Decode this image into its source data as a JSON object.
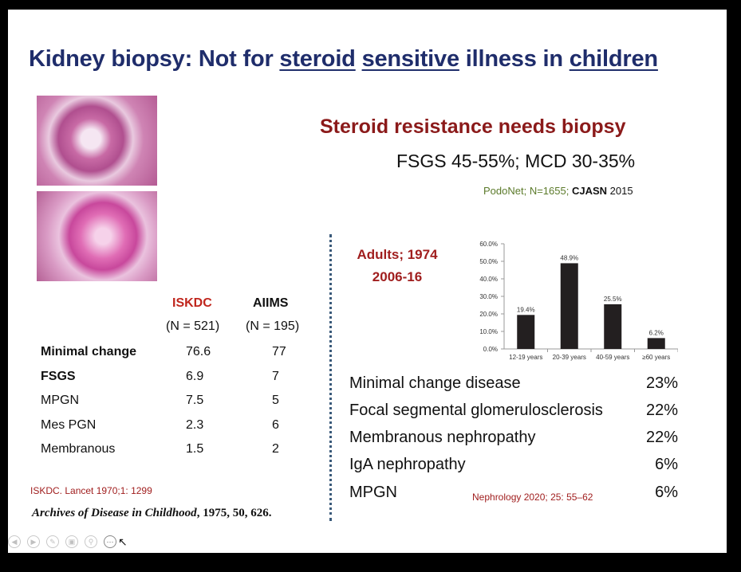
{
  "title": {
    "p1": "Kidney biopsy: Not for ",
    "w1": "steroid",
    "sp1": " ",
    "w2": "sensitive",
    "p2": " illness in ",
    "w3": "children"
  },
  "heading": "Steroid resistance needs biopsy",
  "subheading": "FSGS 45-55%; MCD 30-35%",
  "cite_podonet": {
    "a": "PodoNet; N=1655; ",
    "b": "CJASN",
    "c": " 2015"
  },
  "adults": {
    "line1": "Adults; 1974",
    "line2": "2006-16"
  },
  "table": {
    "col1": {
      "name": "ISKDC",
      "n": "(N = 521)"
    },
    "col2": {
      "name": "AIIMS",
      "n": "(N = 195)"
    },
    "rows": [
      {
        "label": "Minimal change",
        "v1": "76.6",
        "v2": "77"
      },
      {
        "label": "FSGS",
        "v1": "6.9",
        "v2": "7"
      },
      {
        "label": "MPGN",
        "v1": "7.5",
        "v2": "5"
      },
      {
        "label": "Mes PGN",
        "v1": "2.3",
        "v2": "6"
      },
      {
        "label": "Membranous",
        "v1": "1.5",
        "v2": "2"
      }
    ]
  },
  "cite_iskdc": "ISKDC. Lancet 1970;1: 1299",
  "cite_archives": {
    "a": "Archives of Disease in Childhood",
    "b": ", 1975, ",
    "c": "50",
    "d": ", 626."
  },
  "list": [
    {
      "label": "Minimal change disease",
      "pct": "23%"
    },
    {
      "label": "Focal segmental glomerulosclerosis",
      "pct": "22%"
    },
    {
      "label": "Membranous nephropathy",
      "pct": "22%"
    },
    {
      "label": "IgA nephropathy",
      "pct": "6%"
    },
    {
      "label": "MPGN",
      "pct": "6%"
    }
  ],
  "cite_nephrology": "Nephrology 2020; 25: 55–62",
  "controls": [
    "prev-icon",
    "next-icon",
    "pen-icon",
    "slides-icon",
    "zoom-icon",
    "more-icon"
  ],
  "chart_data": {
    "type": "bar",
    "categories": [
      "12-19 years",
      "20-39 years",
      "40-59 years",
      "≥60 years"
    ],
    "values": [
      19.4,
      48.9,
      25.5,
      6.2
    ],
    "data_labels": [
      "19.4%",
      "48.9%",
      "25.5%",
      "6.2%"
    ],
    "ylim": [
      0,
      60
    ],
    "yticks": [
      "0.0%",
      "10.0%",
      "20.0%",
      "30.0%",
      "40.0%",
      "50.0%",
      "60.0%"
    ],
    "bar_color": "#231f20"
  }
}
